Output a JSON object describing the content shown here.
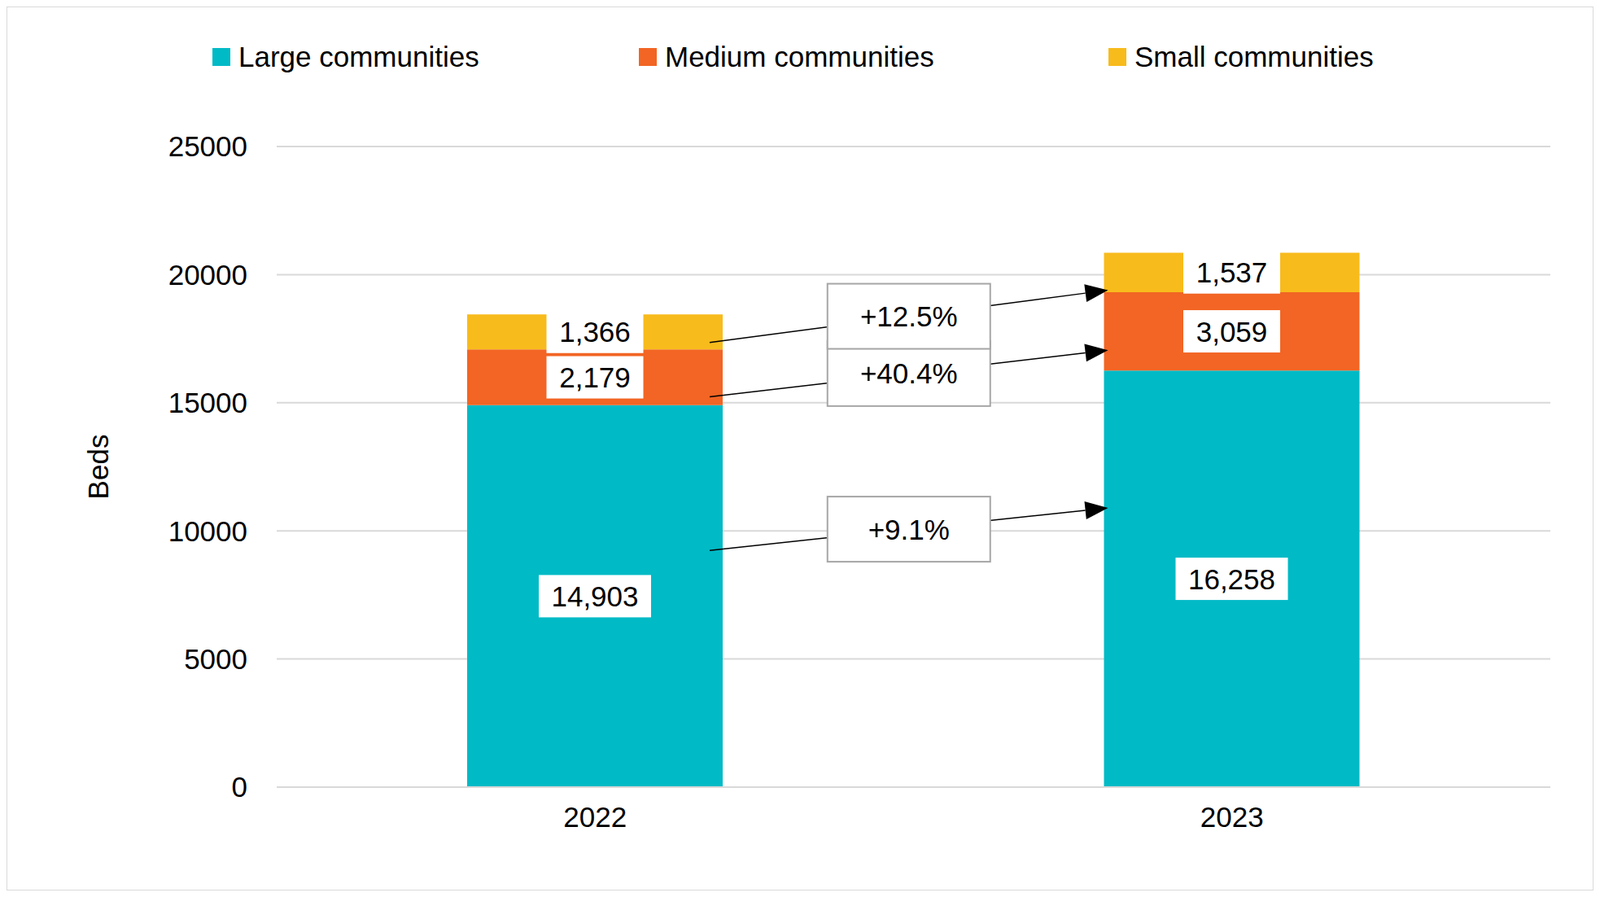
{
  "chart_data": {
    "type": "bar",
    "stacked": true,
    "categories": [
      "2022",
      "2023"
    ],
    "y_label": "Beds",
    "ylim": [
      0,
      25000
    ],
    "yticks": [
      0,
      5000,
      10000,
      15000,
      20000,
      25000
    ],
    "grid": true,
    "legend": "top",
    "data_labels": true,
    "series": [
      {
        "name": "Large communities",
        "color": "#00BAC6",
        "values": [
          14903,
          16258
        ],
        "value_labels": [
          "14,903",
          "16,258"
        ]
      },
      {
        "name": "Medium communities",
        "color": "#F26524",
        "values": [
          2179,
          3059
        ],
        "value_labels": [
          "2,179",
          "3,059"
        ]
      },
      {
        "name": "Small communities",
        "color": "#F8BB1C",
        "values": [
          1366,
          1537
        ],
        "value_labels": [
          "1,366",
          "1,537"
        ]
      }
    ],
    "annotations": [
      {
        "series": "Large communities",
        "text": "+9.1%"
      },
      {
        "series": "Medium communities",
        "text": "+40.4%"
      },
      {
        "series": "Small communities",
        "text": "+12.5%"
      }
    ]
  }
}
